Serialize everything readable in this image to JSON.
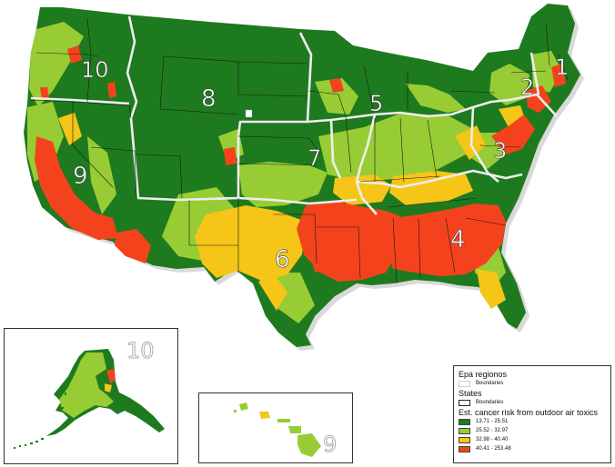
{
  "colors": {
    "class1": "#1e7a1e",
    "class2": "#98cc35",
    "class3": "#f5c518",
    "class4": "#f4431c",
    "region_boundary": "#e8e8e8",
    "state_boundary": "#222222"
  },
  "region_labels": {
    "r1": "1",
    "r2": "2",
    "r3": "3",
    "r4": "4",
    "r5": "5",
    "r6": "6",
    "r7": "7",
    "r8": "8",
    "r9": "9",
    "r10": "10"
  },
  "inset_labels": {
    "alaska": "10",
    "hawaii": "9"
  },
  "legend": {
    "epa_title": "Epa regionos",
    "epa_item": "Boundaries",
    "states_title": "States",
    "states_item": "Boundaries",
    "risk_title": "Est. cancer risk from outdoor air toxics",
    "classes": [
      {
        "label": "13.71 - 25.51",
        "color": "#1e7a1e"
      },
      {
        "label": "25.52 - 32.97",
        "color": "#98cc35"
      },
      {
        "label": "32.98 - 40.40",
        "color": "#f5c518"
      },
      {
        "label": "40.41 - 253.48",
        "color": "#f4431c"
      }
    ]
  }
}
